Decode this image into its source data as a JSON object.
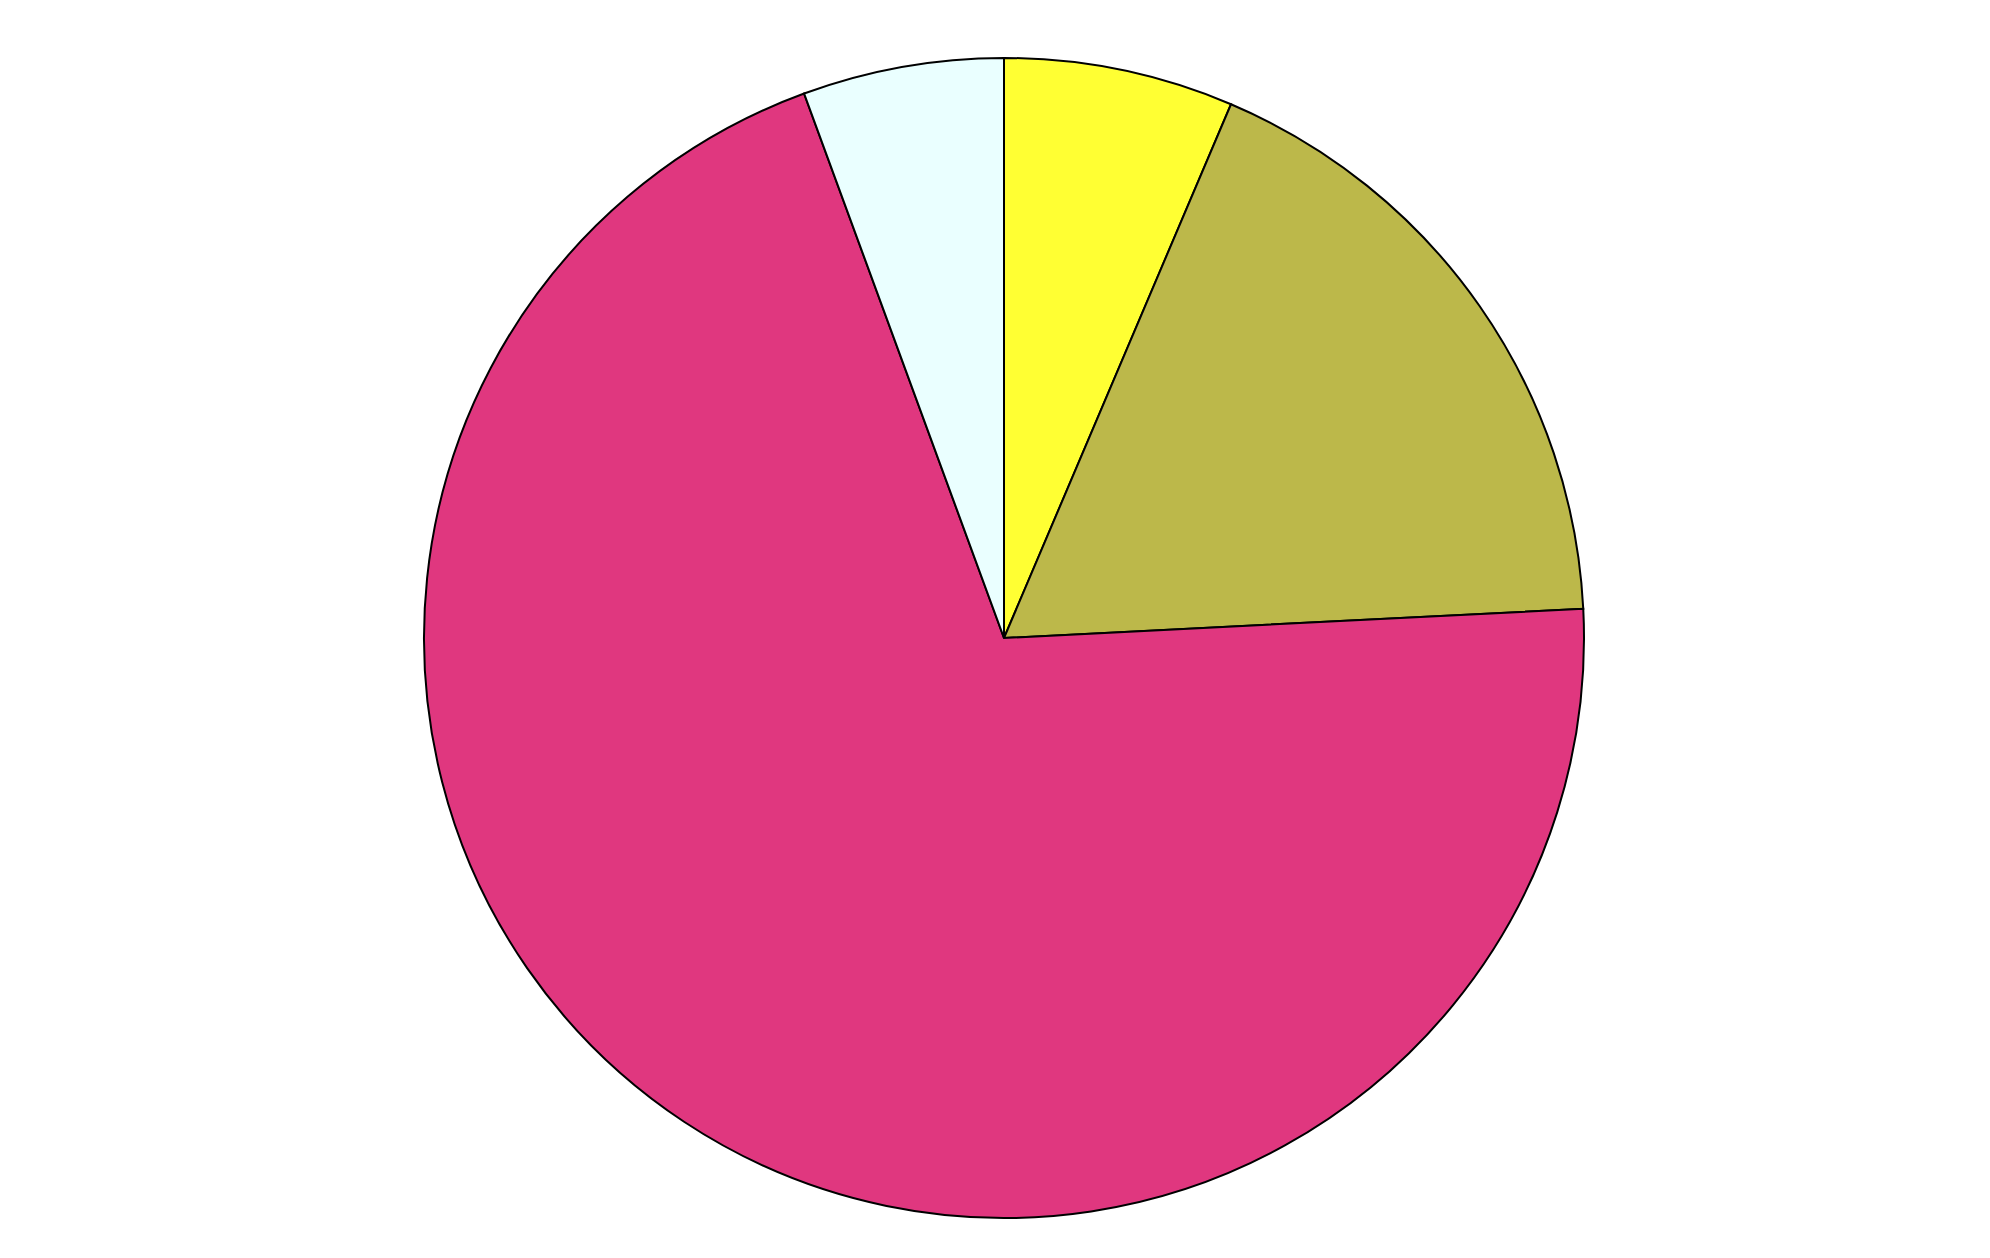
{
  "chart_data": {
    "type": "pie",
    "categories": [
      null,
      null,
      null,
      null
    ],
    "values": [
      6.4,
      17.8,
      70.2,
      5.6
    ],
    "colors": [
      "#ffff33",
      "#bcb84a",
      "#e0377f",
      "#eaffff"
    ]
  }
}
